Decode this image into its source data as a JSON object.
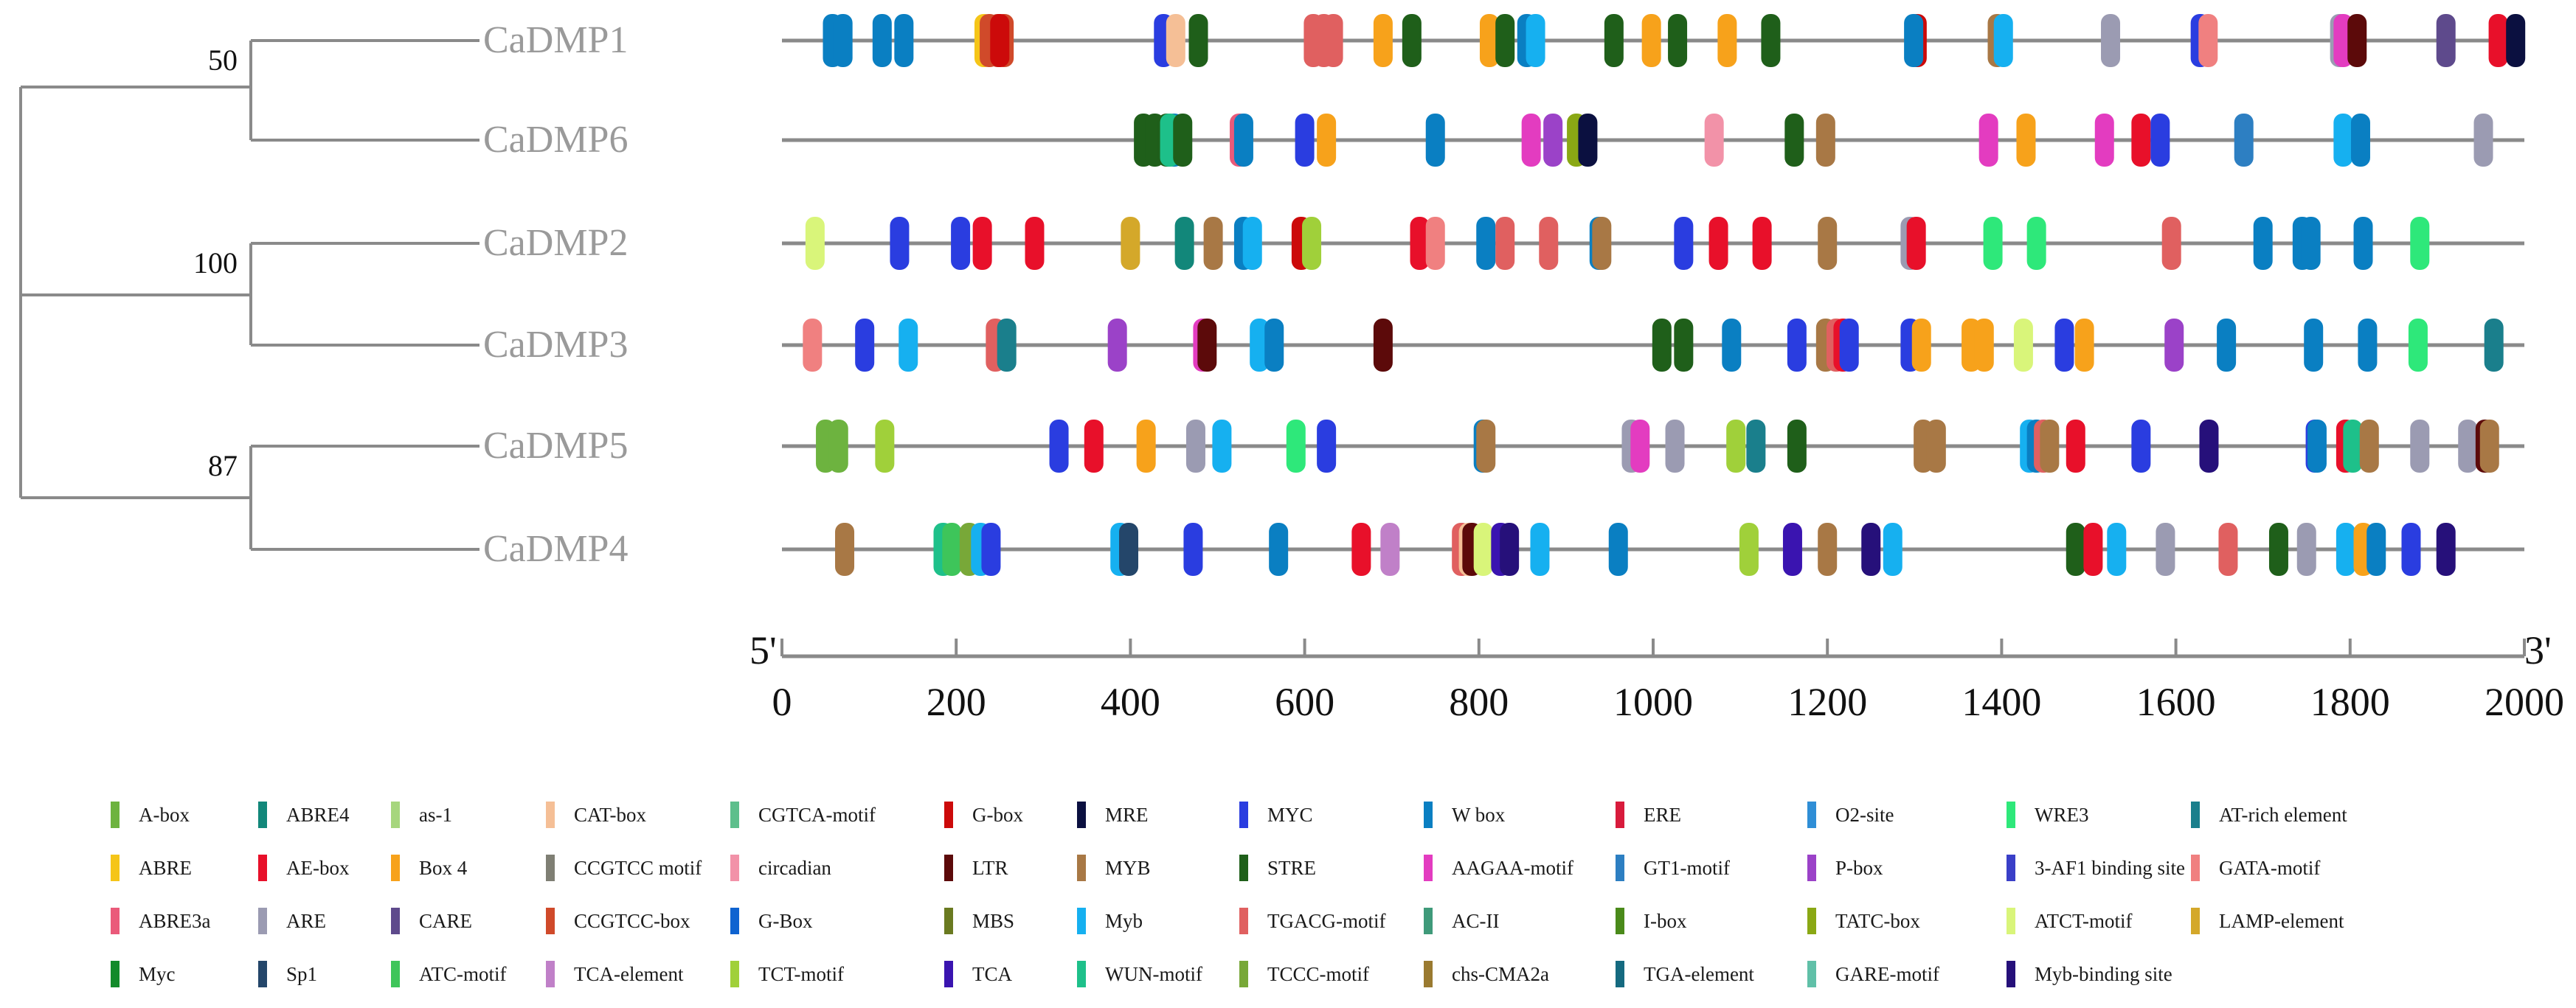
{
  "tree": {
    "leaves": [
      "CaDMP1",
      "CaDMP6",
      "CaDMP2",
      "CaDMP3",
      "CaDMP5",
      "CaDMP4"
    ],
    "bootstrap": [
      {
        "clade": "CaDMP1-CaDMP6",
        "value": "50"
      },
      {
        "clade": "CaDMP2-CaDMP3",
        "value": "100"
      },
      {
        "clade": "CaDMP5-CaDMP4",
        "value": "87"
      }
    ]
  },
  "axis": {
    "start_label": "5'",
    "end_label": "3'",
    "min": 0,
    "max": 2000,
    "ticks": [
      "0",
      "200",
      "400",
      "600",
      "800",
      "1000",
      "1200",
      "1400",
      "1600",
      "1800",
      "2000"
    ]
  },
  "colors": {
    "A-box": "#6db33f",
    "ABRE4": "#12877a",
    "as-1": "#a6d67d",
    "CAT-box": "#f5bf96",
    "CGTCA-motif": "#5dbf8c",
    "G-box": "#cc0a0a",
    "MRE": "#0b1040",
    "MYC": "#2a3de0",
    "W box": "#0a7fc2",
    "ERE": "#d81b3c",
    "O2-site": "#2f8ed6",
    "WRE3": "#2ee87a",
    "AT-rich element": "#1a7f8c",
    "ABRE": "#f5c518",
    "AE-box": "#e8102a",
    "Box 4": "#f7a21b",
    "CCGTCC motif": "#7f7f74",
    "circadian": "#f292a8",
    "LTR": "#5c0a0a",
    "MYB": "#a87845",
    "STRE": "#1f5f1a",
    "AAGAA-motif": "#e33cc0",
    "GT1-motif": "#2d7fc2",
    "P-box": "#9b42c8",
    "3-AF1 binding site": "#3a3fc8",
    "GATA-motif": "#f08080",
    "ABRE3a": "#ea5a7a",
    "ARE": "#9b9bb2",
    "CARE": "#5e4a8c",
    "CCGTCC-box": "#d04a2a",
    "G-Box": "#0e63d0",
    "MBS": "#6a7a20",
    "Myb": "#16b0f0",
    "TGACG-motif": "#e06060",
    "AC-II": "#3f9a7a",
    "I-box": "#4a8a1a",
    "TATC-box": "#8aa814",
    "ATCT-motif": "#d9f57a",
    "LAMP-element": "#d4a82a",
    "Myc": "#128a2a",
    "Sp1": "#24466a",
    "ATC-motif": "#3ec55a",
    "TCA-element": "#c080c8",
    "TCT-motif": "#a0d03a",
    "TCA": "#3a14b0",
    "WUN-motif": "#1ec08a",
    "TCCC-motif": "#78a838",
    "chs-CMA2a": "#9a7a30",
    "TGA-element": "#156a80",
    "GARE-motif": "#60c0a8",
    "Myb-binding site": "#26107a"
  },
  "legend": [
    "A-box",
    "ABRE4",
    "as-1",
    "CAT-box",
    "CGTCA-motif",
    "G-box",
    "MRE",
    "MYC",
    "W box",
    "ERE",
    "O2-site",
    "WRE3",
    "AT-rich element",
    "ABRE",
    "AE-box",
    "Box 4",
    "CCGTCC motif",
    "circadian",
    "LTR",
    "MYB",
    "STRE",
    "AAGAA-motif",
    "GT1-motif",
    "P-box",
    "3-AF1 binding site",
    "GATA-motif",
    "ABRE3a",
    "ARE",
    "CARE",
    "CCGTCC-box",
    "G-Box",
    "MBS",
    "Myb",
    "TGACG-motif",
    "AC-II",
    "I-box",
    "TATC-box",
    "ATCT-motif",
    "LAMP-element",
    "Myc",
    "Sp1",
    "ATC-motif",
    "TCA-element",
    "TCT-motif",
    "TCA",
    "WUN-motif",
    "TCCC-motif",
    "chs-CMA2a",
    "TGA-element",
    "GARE-motif",
    "Myb-binding site"
  ],
  "sequences": [
    {
      "name": "CaDMP1",
      "start": 0,
      "end": 2000,
      "elements": [
        [
          "W box",
          58
        ],
        [
          "W box",
          70
        ],
        [
          "W box",
          115
        ],
        [
          "W box",
          140
        ],
        [
          "ABRE",
          232
        ],
        [
          "CCGTCC-box",
          238
        ],
        [
          "CCGTCC-box",
          248
        ],
        [
          "CCGTCC-box",
          255
        ],
        [
          "G-box",
          250
        ],
        [
          "MYC",
          438
        ],
        [
          "CAT-box",
          452
        ],
        [
          "STRE",
          478
        ],
        [
          "TGACG-motif",
          610
        ],
        [
          "TGACG-motif",
          622
        ],
        [
          "TGACG-motif",
          633
        ],
        [
          "Box 4",
          690
        ],
        [
          "STRE",
          723
        ],
        [
          "Box 4",
          812
        ],
        [
          "STRE",
          830
        ],
        [
          "W box",
          855
        ],
        [
          "Myb",
          865
        ],
        [
          "STRE",
          955
        ],
        [
          "Box 4",
          998
        ],
        [
          "STRE",
          1028
        ],
        [
          "Box 4",
          1085
        ],
        [
          "STRE",
          1135
        ],
        [
          "G-box",
          1303
        ],
        [
          "W box",
          1299
        ],
        [
          "MYB",
          1395
        ],
        [
          "Myb",
          1402
        ],
        [
          "ARE",
          1525
        ],
        [
          "MYC",
          1628
        ],
        [
          "GATA-motif",
          1637
        ],
        [
          "ARE",
          1788
        ],
        [
          "AAGAA-motif",
          1792
        ],
        [
          "LTR",
          1808
        ],
        [
          "CARE",
          1910
        ],
        [
          "AE-box",
          1970
        ],
        [
          "MRE",
          1990
        ]
      ]
    },
    {
      "name": "CaDMP6",
      "start": 0,
      "end": 2000,
      "elements": [
        [
          "STRE",
          415
        ],
        [
          "STRE",
          428
        ],
        [
          "STRE",
          442
        ],
        [
          "W box",
          450
        ],
        [
          "WUN-motif",
          445
        ],
        [
          "STRE",
          460
        ],
        [
          "ABRE3a",
          525
        ],
        [
          "W box",
          530
        ],
        [
          "MYC",
          600
        ],
        [
          "Box 4",
          625
        ],
        [
          "W box",
          750
        ],
        [
          "AAGAA-motif",
          860
        ],
        [
          "P-box",
          885
        ],
        [
          "TATC-box",
          912
        ],
        [
          "MRE",
          925
        ],
        [
          "circadian",
          1070
        ],
        [
          "STRE",
          1162
        ],
        [
          "MYB",
          1198
        ],
        [
          "AAGAA-motif",
          1385
        ],
        [
          "Box 4",
          1428
        ],
        [
          "AAGAA-motif",
          1518
        ],
        [
          "AE-box",
          1560
        ],
        [
          "MYC",
          1582
        ],
        [
          "GT1-motif",
          1678
        ],
        [
          "Myb",
          1792
        ],
        [
          "W box",
          1812
        ],
        [
          "ARE",
          1953
        ]
      ]
    },
    {
      "name": "CaDMP2",
      "start": 0,
      "end": 2000,
      "elements": [
        [
          "ATCT-motif",
          38
        ],
        [
          "MYC",
          135
        ],
        [
          "MYC",
          205
        ],
        [
          "AE-box",
          230
        ],
        [
          "AE-box",
          290
        ],
        [
          "LAMP-element",
          400
        ],
        [
          "ABRE4",
          462
        ],
        [
          "MYB",
          495
        ],
        [
          "W box",
          530
        ],
        [
          "Myb",
          540
        ],
        [
          "G-box",
          596
        ],
        [
          "TCT-motif",
          608
        ],
        [
          "AE-box",
          732
        ],
        [
          "GATA-motif",
          750
        ],
        [
          "W box",
          808
        ],
        [
          "TGACG-motif",
          830
        ],
        [
          "TGACG-motif",
          880
        ],
        [
          "W box",
          938
        ],
        [
          "MYB",
          941
        ],
        [
          "MYC",
          1035
        ],
        [
          "AE-box",
          1075
        ],
        [
          "AE-box",
          1125
        ],
        [
          "MYB",
          1200
        ],
        [
          "ARE",
          1295
        ],
        [
          "AE-box",
          1302
        ],
        [
          "WRE3",
          1390
        ],
        [
          "WRE3",
          1440
        ],
        [
          "TGACG-motif",
          1595
        ],
        [
          "W box",
          1700
        ],
        [
          "W box",
          1745
        ],
        [
          "W box",
          1755
        ],
        [
          "W box",
          1815
        ],
        [
          "WRE3",
          1880
        ]
      ]
    },
    {
      "name": "CaDMP3",
      "start": 0,
      "end": 2000,
      "elements": [
        [
          "GATA-motif",
          35
        ],
        [
          "MYC",
          95
        ],
        [
          "Myb",
          145
        ],
        [
          "TGACG-motif",
          245
        ],
        [
          "AT-rich element",
          258
        ],
        [
          "P-box",
          385
        ],
        [
          "AAGAA-motif",
          483
        ],
        [
          "LTR",
          488
        ],
        [
          "Myb",
          548
        ],
        [
          "W box",
          565
        ],
        [
          "LTR",
          690
        ],
        [
          "STRE",
          1010
        ],
        [
          "STRE",
          1035
        ],
        [
          "W box",
          1090
        ],
        [
          "MYC",
          1165
        ],
        [
          "MYB",
          1198
        ],
        [
          "TGACG-motif",
          1210
        ],
        [
          "AE-box",
          1218
        ],
        [
          "MYC",
          1225
        ],
        [
          "MYC",
          1295
        ],
        [
          "Box 4",
          1308
        ],
        [
          "Box 4",
          1365
        ],
        [
          "Box 4",
          1380
        ],
        [
          "ATCT-motif",
          1425
        ],
        [
          "MYC",
          1472
        ],
        [
          "Box 4",
          1495
        ],
        [
          "P-box",
          1598
        ],
        [
          "W box",
          1658
        ],
        [
          "W box",
          1758
        ],
        [
          "W box",
          1820
        ],
        [
          "WRE3",
          1878
        ],
        [
          "AT-rich element",
          1965
        ]
      ]
    },
    {
      "name": "CaDMP5",
      "start": 0,
      "end": 2000,
      "elements": [
        [
          "A-box",
          50
        ],
        [
          "A-box",
          65
        ],
        [
          "TCT-motif",
          118
        ],
        [
          "MYC",
          318
        ],
        [
          "AE-box",
          358
        ],
        [
          "Box 4",
          418
        ],
        [
          "ARE",
          475
        ],
        [
          "Myb",
          505
        ],
        [
          "WRE3",
          590
        ],
        [
          "MYC",
          625
        ],
        [
          "W box",
          805
        ],
        [
          "MYB",
          808
        ],
        [
          "ARE",
          975
        ],
        [
          "AAGAA-motif",
          985
        ],
        [
          "ARE",
          1025
        ],
        [
          "TCT-motif",
          1095
        ],
        [
          "AT-rich element",
          1118
        ],
        [
          "STRE",
          1165
        ],
        [
          "MYB",
          1310
        ],
        [
          "MYB",
          1325
        ],
        [
          "Myb",
          1432
        ],
        [
          "W box",
          1440
        ],
        [
          "TGACG-motif",
          1448
        ],
        [
          "MYB",
          1455
        ],
        [
          "AE-box",
          1485
        ],
        [
          "MYC",
          1560
        ],
        [
          "Myb-binding site",
          1638
        ],
        [
          "MYC",
          1760
        ],
        [
          "W box",
          1762
        ],
        [
          "AE-box",
          1795
        ],
        [
          "WUN-motif",
          1803
        ],
        [
          "MYB",
          1822
        ],
        [
          "ARE",
          1880
        ],
        [
          "ARE",
          1935
        ],
        [
          "LTR",
          1955
        ],
        [
          "MYB",
          1960
        ]
      ]
    },
    {
      "name": "CaDMP4",
      "start": 0,
      "end": 2000,
      "elements": [
        [
          "MYB",
          72
        ],
        [
          "WUN-motif",
          185
        ],
        [
          "ATC-motif",
          195
        ],
        [
          "TCCC-motif",
          215
        ],
        [
          "Myb",
          228
        ],
        [
          "MYC",
          240
        ],
        [
          "Myb",
          388
        ],
        [
          "Sp1",
          398
        ],
        [
          "MYC",
          472
        ],
        [
          "W box",
          570
        ],
        [
          "AE-box",
          665
        ],
        [
          "TCA-element",
          698
        ],
        [
          "TGACG-motif",
          780
        ],
        [
          "CAT-box",
          788
        ],
        [
          "LTR",
          792
        ],
        [
          "ATCT-motif",
          805
        ],
        [
          "TCA",
          825
        ],
        [
          "Myb-binding site",
          835
        ],
        [
          "Myb",
          870
        ],
        [
          "W box",
          960
        ],
        [
          "TCT-motif",
          1110
        ],
        [
          "TCA",
          1160
        ],
        [
          "MYB",
          1200
        ],
        [
          "Myb-binding site",
          1250
        ],
        [
          "Myb",
          1275
        ],
        [
          "STRE",
          1485
        ],
        [
          "AE-box",
          1505
        ],
        [
          "Myb",
          1532
        ],
        [
          "ARE",
          1588
        ],
        [
          "TGACG-motif",
          1660
        ],
        [
          "STRE",
          1718
        ],
        [
          "ARE",
          1750
        ],
        [
          "Myb",
          1795
        ],
        [
          "Box 4",
          1815
        ],
        [
          "W box",
          1830
        ],
        [
          "MYC",
          1870
        ],
        [
          "Myb-binding site",
          1910
        ]
      ]
    }
  ]
}
